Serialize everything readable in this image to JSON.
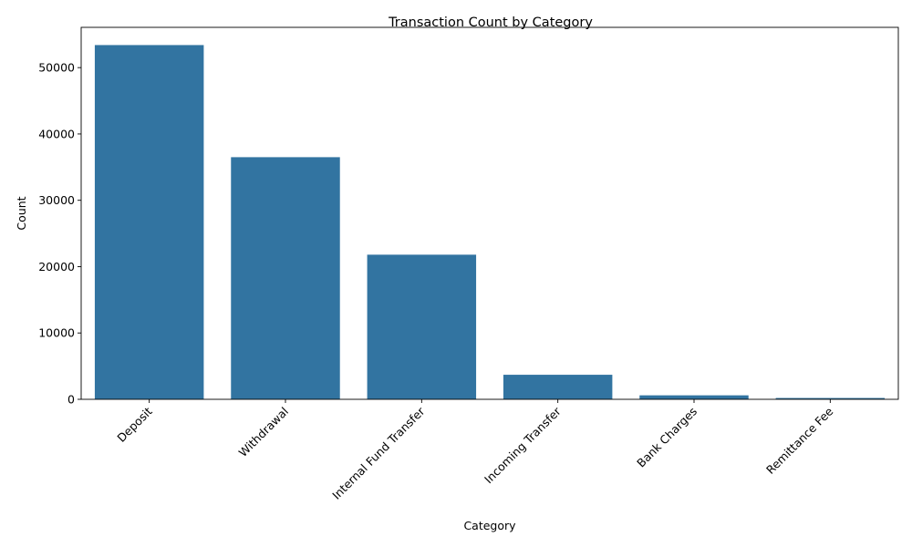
{
  "chart_data": {
    "type": "bar",
    "title": "Transaction Count by Category",
    "xlabel": "Category",
    "ylabel": "Count",
    "categories": [
      "Deposit",
      "Withdrawal",
      "Internal Fund Transfer",
      "Incoming Transfer",
      "Bank Charges",
      "Remittance Fee"
    ],
    "values": [
      53400,
      36500,
      21800,
      3700,
      600,
      200
    ],
    "yticks": [
      0,
      10000,
      20000,
      30000,
      40000,
      50000
    ],
    "ylim": [
      0,
      56070
    ],
    "bar_color": "#3274a1",
    "grid": false,
    "legend": "none",
    "xtick_rotation_deg": 45
  }
}
